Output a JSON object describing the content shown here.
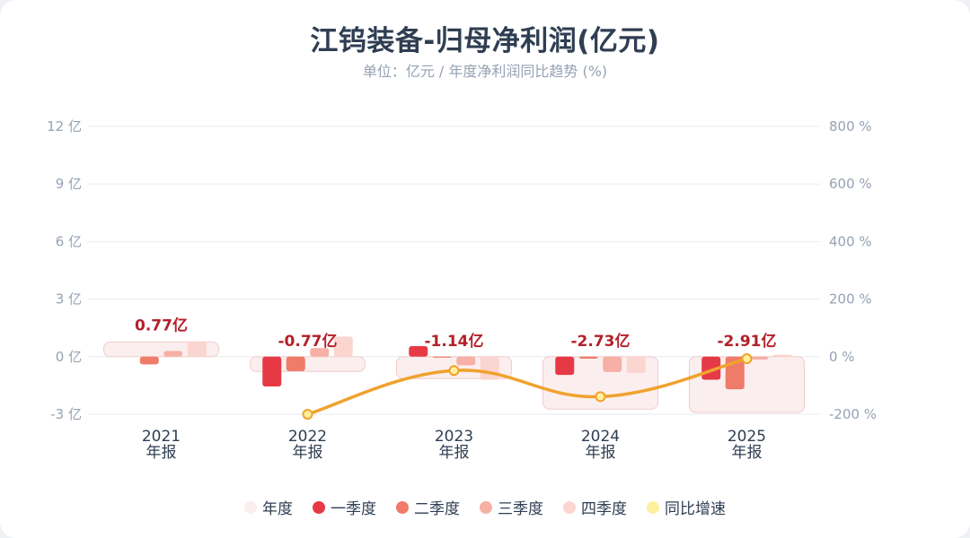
{
  "title": "江钨装备-归母净利润(亿元)",
  "subtitle": "单位：亿元 / 年度净利润同比趋势 (%)",
  "chart_data": {
    "type": "bar",
    "categories": [
      "2021",
      "2022",
      "2023",
      "2024",
      "2025"
    ],
    "category_suffix": "年报",
    "y_left": {
      "unit": "亿",
      "ylim": [
        -3,
        12
      ],
      "ticks": [
        -3,
        0,
        3,
        6,
        9,
        12
      ]
    },
    "y_right": {
      "unit": "%",
      "ylim": [
        -200,
        800
      ],
      "ticks": [
        -200,
        0,
        200,
        400,
        600,
        800
      ]
    },
    "annual": {
      "name": "年度",
      "values": [
        0.77,
        -0.77,
        -1.14,
        -2.73,
        -2.91
      ],
      "labels": [
        "0.77亿",
        "-0.77亿",
        "-1.14亿",
        "-2.73亿",
        "-2.91亿"
      ]
    },
    "series": [
      {
        "name": "一季度",
        "values": [
          0.0,
          -1.55,
          0.55,
          -0.95,
          -1.2
        ]
      },
      {
        "name": "二季度",
        "values": [
          -0.4,
          -0.75,
          -0.05,
          -0.1,
          -1.7
        ]
      },
      {
        "name": "三季度",
        "values": [
          0.3,
          0.45,
          -0.45,
          -0.8,
          -0.15
        ]
      },
      {
        "name": "四季度",
        "values": [
          0.8,
          1.05,
          -1.2,
          -0.85,
          0.1
        ]
      }
    ],
    "yoy": {
      "name": "同比增速",
      "values": [
        null,
        -200,
        -48,
        -139,
        -7
      ]
    },
    "grid": true,
    "legend_position": "bottom"
  },
  "colors": {
    "annual_fill": "#fbeeee",
    "annual_stroke": "#f2cccc",
    "q1": "#e63946",
    "q2": "#ef7b69",
    "q3": "#f6b0a6",
    "q4": "#fbd5cf",
    "yoy_line": "#f0a22e",
    "yoy_point": "#fff0a0",
    "label": "#b3202a",
    "axis_text": "#95a2b4",
    "grid": "#e7ebf0"
  }
}
